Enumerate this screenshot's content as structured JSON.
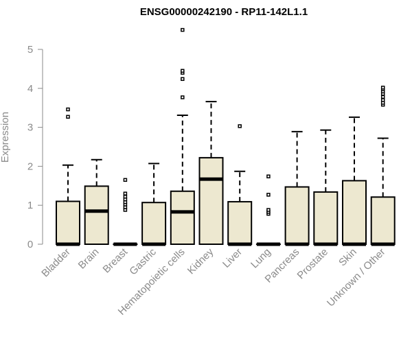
{
  "chart_data": {
    "type": "boxplot",
    "title": "ENSG00000242190 - RP11-142L1.1",
    "ylabel": "Expression",
    "xlabel": "",
    "ylim": [
      0,
      5.5
    ],
    "yticks": [
      0,
      1,
      2,
      3,
      4,
      5
    ],
    "categories": [
      "Bladder",
      "Brain",
      "Breast",
      "Gastric",
      "Hematopoietic cells",
      "Kidney",
      "Liver",
      "Lung",
      "Pancreas",
      "Prostate",
      "Skin",
      "Unknown / Other"
    ],
    "boxes": [
      {
        "category": "Bladder",
        "q1": 0,
        "median": 0,
        "q3": 1.1,
        "whisker_low": 0,
        "whisker_high": 2.03,
        "outliers": [
          3.27,
          3.46
        ]
      },
      {
        "category": "Brain",
        "q1": 0,
        "median": 0.85,
        "q3": 1.49,
        "whisker_low": 0,
        "whisker_high": 2.17,
        "outliers": []
      },
      {
        "category": "Breast",
        "q1": 0,
        "median": 0,
        "q3": 0,
        "whisker_low": 0,
        "whisker_high": 0,
        "outliers": [
          0.88,
          0.95,
          1.02,
          1.08,
          1.15,
          1.22,
          1.3,
          1.65
        ]
      },
      {
        "category": "Gastric",
        "q1": 0,
        "median": 0,
        "q3": 1.07,
        "whisker_low": 0,
        "whisker_high": 2.07,
        "outliers": []
      },
      {
        "category": "Hematopoietic cells",
        "q1": 0,
        "median": 0.83,
        "q3": 1.36,
        "whisker_low": 0,
        "whisker_high": 3.31,
        "outliers": [
          3.77,
          4.24,
          4.4,
          4.45,
          5.5
        ]
      },
      {
        "category": "Kidney",
        "q1": 0,
        "median": 1.67,
        "q3": 2.22,
        "whisker_low": 0,
        "whisker_high": 3.66,
        "outliers": []
      },
      {
        "category": "Liver",
        "q1": 0,
        "median": 0,
        "q3": 1.09,
        "whisker_low": 0,
        "whisker_high": 1.87,
        "outliers": [
          3.03
        ]
      },
      {
        "category": "Lung",
        "q1": 0,
        "median": 0,
        "q3": 0,
        "whisker_low": 0,
        "whisker_high": 0,
        "outliers": [
          0.78,
          0.83,
          0.88,
          1.27,
          1.74
        ]
      },
      {
        "category": "Pancreas",
        "q1": 0,
        "median": 0,
        "q3": 1.47,
        "whisker_low": 0,
        "whisker_high": 2.89,
        "outliers": []
      },
      {
        "category": "Prostate",
        "q1": 0,
        "median": 0,
        "q3": 1.34,
        "whisker_low": 0,
        "whisker_high": 2.93,
        "outliers": []
      },
      {
        "category": "Skin",
        "q1": 0,
        "median": 0,
        "q3": 1.63,
        "whisker_low": 0,
        "whisker_high": 3.26,
        "outliers": []
      },
      {
        "category": "Unknown / Other",
        "q1": 0,
        "median": 0,
        "q3": 1.21,
        "whisker_low": 0,
        "whisker_high": 2.72,
        "outliers": [
          3.58,
          3.63,
          3.7,
          3.78,
          3.86,
          3.92,
          3.98,
          4.02
        ]
      }
    ],
    "box_fill": "#ede8d0",
    "box_stroke": "#000000",
    "axis_color": "#8a8a8a",
    "grid": false,
    "legend": "none"
  }
}
